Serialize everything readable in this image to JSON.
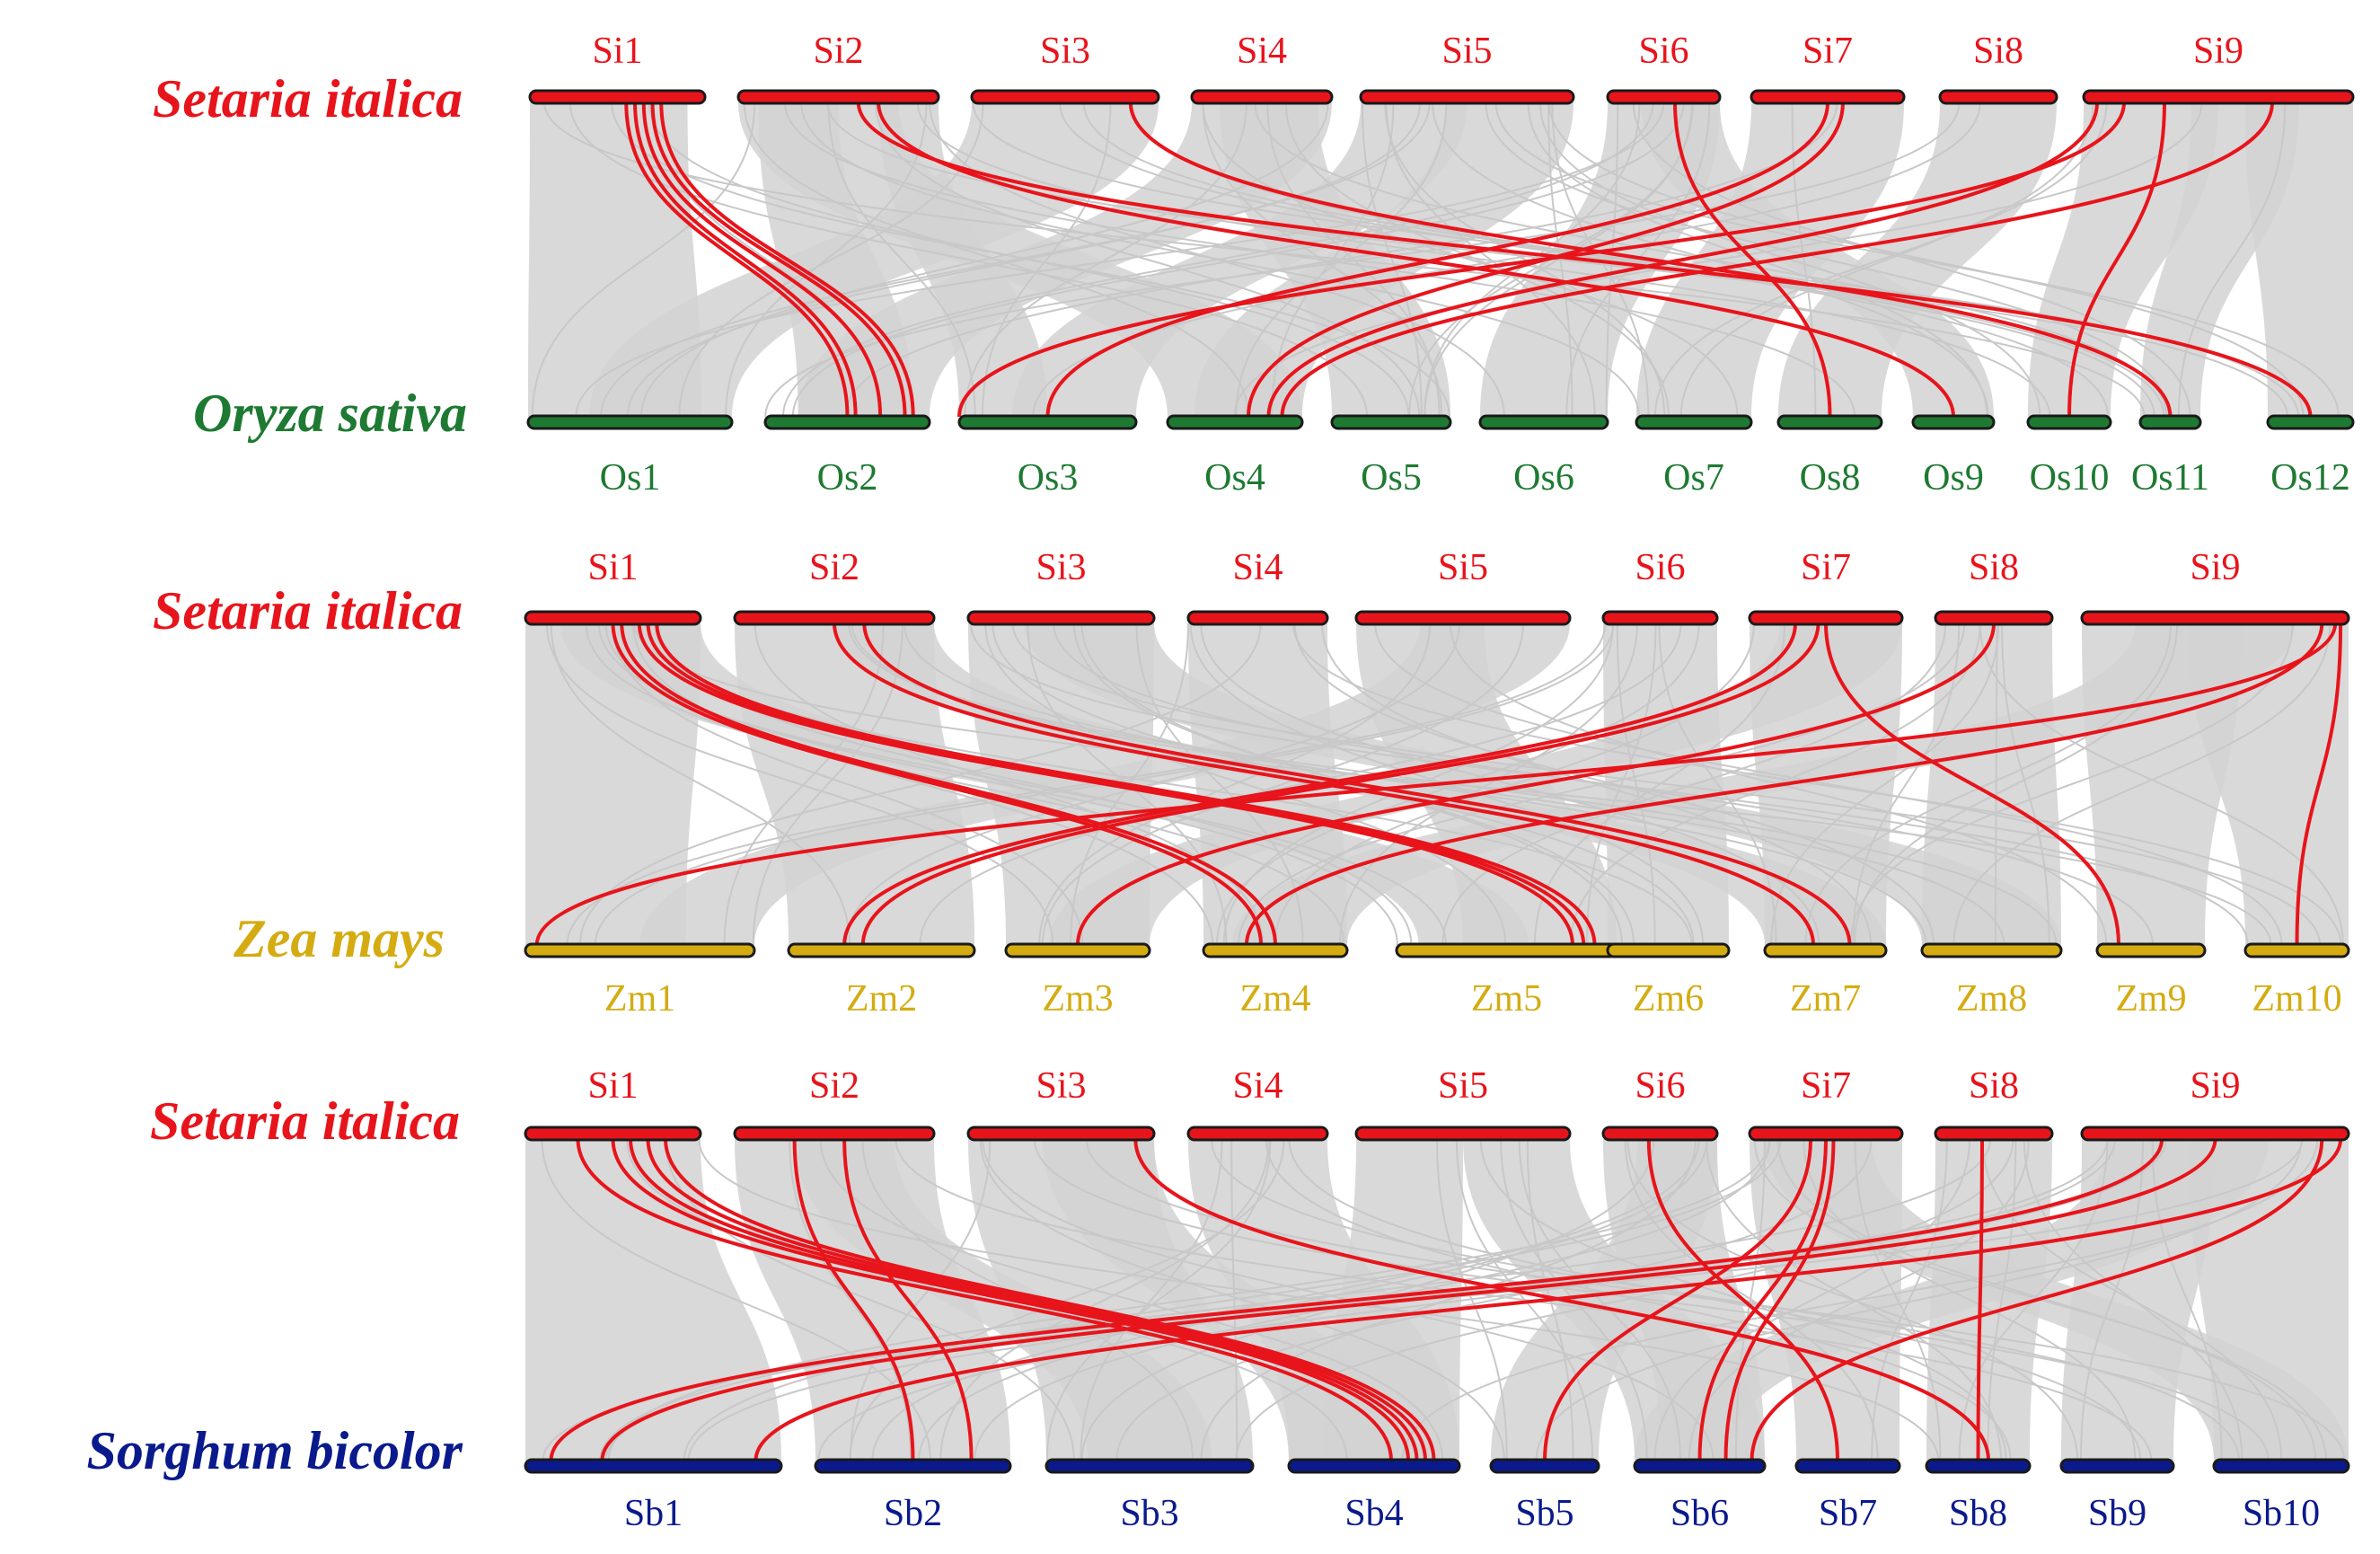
{
  "colors": {
    "setaria": "#e8141b",
    "oryza": "#1e7a32",
    "zea": "#d4ac12",
    "sorghum": "#0a1a8c",
    "background_link": "#d2d2d2",
    "highlight_link": "#e8141b",
    "outline": "#1a1a1a"
  },
  "panels": [
    {
      "top": {
        "species": "Setaria italica",
        "color_key": "setaria",
        "chromosomes": [
          "Si1",
          "Si2",
          "Si3",
          "Si4",
          "Si5",
          "Si6",
          "Si7",
          "Si8",
          "Si9"
        ]
      },
      "bottom": {
        "species": "Oryza sativa",
        "color_key": "oryza",
        "chromosomes": [
          "Os1",
          "Os2",
          "Os3",
          "Os4",
          "Os5",
          "Os6",
          "Os7",
          "Os8",
          "Os9",
          "Os10",
          "Os11",
          "Os12"
        ]
      }
    },
    {
      "top": {
        "species": "Setaria italica",
        "color_key": "setaria",
        "chromosomes": [
          "Si1",
          "Si2",
          "Si3",
          "Si4",
          "Si5",
          "Si6",
          "Si7",
          "Si8",
          "Si9"
        ]
      },
      "bottom": {
        "species": "Zea mays",
        "color_key": "zea",
        "chromosomes": [
          "Zm1",
          "Zm2",
          "Zm3",
          "Zm4",
          "Zm5",
          "Zm6",
          "Zm7",
          "Zm8",
          "Zm9",
          "Zm10"
        ]
      }
    },
    {
      "top": {
        "species": "Setaria italica",
        "color_key": "setaria",
        "chromosomes": [
          "Si1",
          "Si2",
          "Si3",
          "Si4",
          "Si5",
          "Si6",
          "Si7",
          "Si8",
          "Si9"
        ]
      },
      "bottom": {
        "species": "Sorghum bicolor",
        "color_key": "sorghum",
        "chromosomes": [
          "Sb1",
          "Sb2",
          "Sb3",
          "Sb4",
          "Sb5",
          "Sb6",
          "Sb7",
          "Sb8",
          "Sb9",
          "Sb10"
        ]
      }
    }
  ]
}
